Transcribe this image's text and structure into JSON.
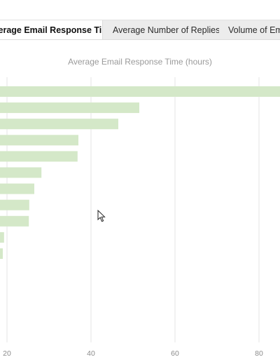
{
  "tabs": [
    {
      "label": "Average Email Response Time",
      "active": true
    },
    {
      "label": "Average Number of Replies",
      "active": false
    },
    {
      "label": "Volume of Emails",
      "active": false
    }
  ],
  "chart_data": {
    "type": "bar",
    "orientation": "horizontal",
    "title": "Average Email Response Time (hours)",
    "xlabel": "",
    "ylabel": "",
    "values": [
      86,
      51.5,
      46.5,
      37,
      36.8,
      28.2,
      26.5,
      25.3,
      25.2,
      19.3,
      19
    ],
    "xlim": [
      18,
      85
    ],
    "xticks": [
      20,
      40,
      60,
      80
    ],
    "grid": true,
    "bar_color": "#d4e8c8",
    "grid_color": "#e6e6e6",
    "tick_color": "#8c8c8c"
  }
}
